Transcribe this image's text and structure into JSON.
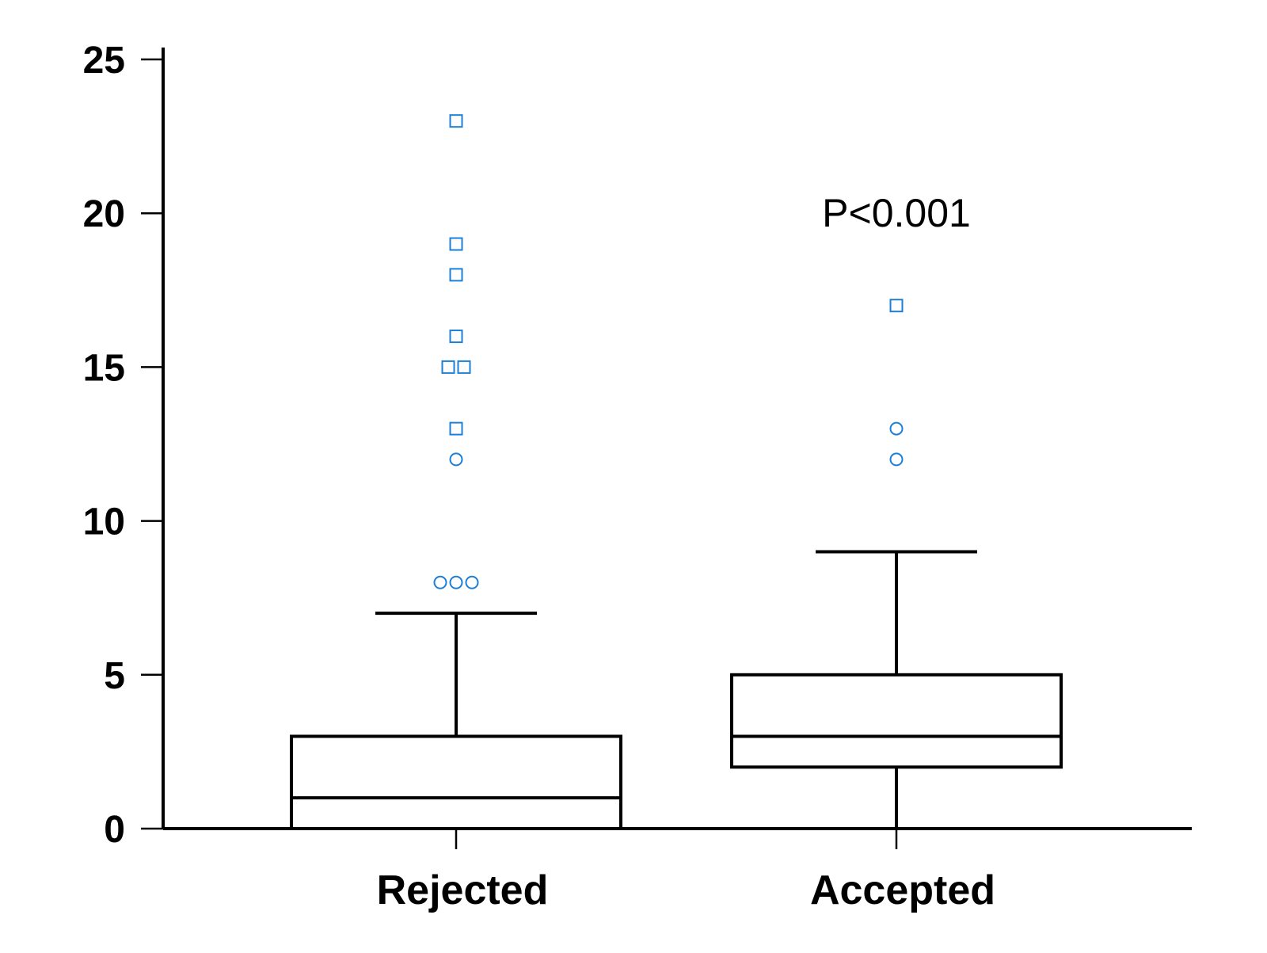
{
  "chart_data": {
    "type": "box",
    "title": "",
    "xlabel": "",
    "ylabel": "",
    "ylim": [
      0,
      25
    ],
    "yticks": [
      0,
      5,
      10,
      15,
      20,
      25
    ],
    "grid": false,
    "categories": [
      "Rejected",
      "Accepted"
    ],
    "boxes": [
      {
        "category": "Rejected",
        "whisker_low": 0,
        "q1": 0,
        "median": 1,
        "q3": 3,
        "whisker_high": 7,
        "outliers_circle": [
          8,
          8,
          8,
          12
        ],
        "outliers_square": [
          13,
          15,
          15,
          16,
          18,
          19,
          23
        ]
      },
      {
        "category": "Accepted",
        "whisker_low": 0,
        "q1": 2,
        "median": 3,
        "q3": 5,
        "whisker_high": 9,
        "outliers_circle": [
          12,
          13
        ],
        "outliers_square": [
          17
        ]
      }
    ],
    "annotations": [
      {
        "text": "P<0.001",
        "category": "Accepted",
        "y": 20
      }
    ],
    "outlier_color": "#1e7fd6"
  }
}
